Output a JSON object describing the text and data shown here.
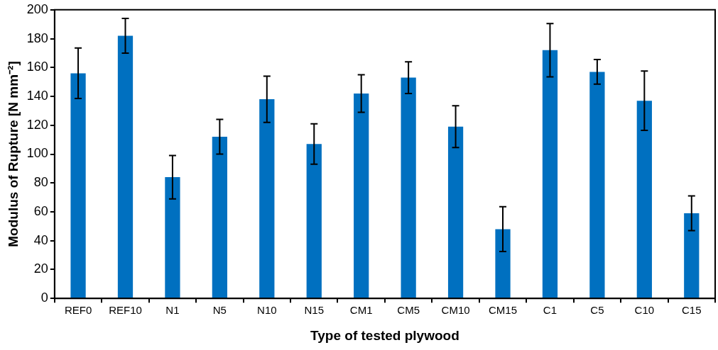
{
  "chart_data": {
    "type": "bar",
    "xlabel": "Type of tested plywood",
    "ylabel": "Modulus of Rupture [N mm⁻²]",
    "categories": [
      "REF0",
      "REF10",
      "N1",
      "N5",
      "N10",
      "N15",
      "CM1",
      "CM5",
      "CM10",
      "CM15",
      "C1",
      "C5",
      "C10",
      "C15"
    ],
    "values": [
      156,
      182,
      84,
      112,
      138,
      107,
      142,
      153,
      119,
      48,
      172,
      157,
      137,
      59
    ],
    "errors": [
      17.5,
      12,
      15,
      12,
      16,
      14,
      13,
      11,
      14.5,
      15.5,
      18.5,
      8.5,
      20.5,
      12
    ],
    "color": "#0070c0",
    "ylim": [
      0,
      200
    ],
    "yticks": [
      0,
      20,
      40,
      60,
      80,
      100,
      120,
      140,
      160,
      180,
      200
    ],
    "grid": false,
    "legend": false
  }
}
